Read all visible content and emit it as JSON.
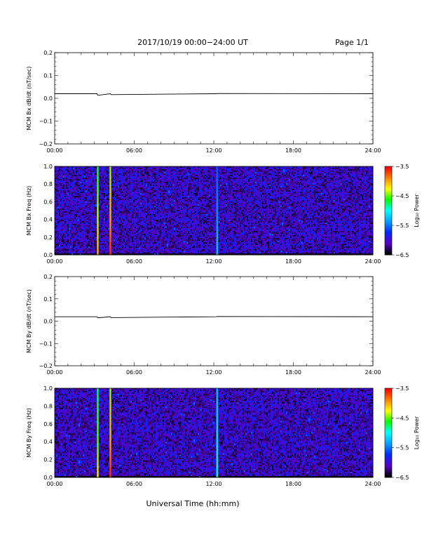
{
  "header": {
    "date_range": "2017/10/19  00:00−24:00 UT",
    "page": "Page 1/1"
  },
  "xaxis": {
    "label": "Universal Time (hh:mm)",
    "ticks": [
      "00:00",
      "06:00",
      "12:00",
      "18:00",
      "24:00"
    ]
  },
  "colors": {
    "colormap": [
      "#000000",
      "#5a00c8",
      "#0028ff",
      "#00a0ff",
      "#00ffff",
      "#00ff00",
      "#ffff00",
      "#ff8000",
      "#ff0000"
    ],
    "background_noise": "#1e46dc"
  },
  "chart_data": [
    {
      "type": "line",
      "ylabel": "MCM Bx dB/dt (nT/sec)",
      "ylim": [
        -0.2,
        0.2
      ],
      "yticks": [
        "0.2",
        "0.1",
        "0.0",
        "−0.1",
        "−0.2"
      ],
      "xlim_hours": [
        0,
        24
      ],
      "baseline": 0.02,
      "x": [
        0,
        3.2,
        3.25,
        4.2,
        4.25,
        12.2,
        12.25,
        24
      ],
      "y": [
        0.02,
        0.02,
        0.013,
        0.02,
        0.016,
        0.02,
        0.021,
        0.02
      ]
    },
    {
      "type": "heatmap",
      "ylabel": "MCM Bx Freq (Hz)",
      "ylim": [
        0,
        1
      ],
      "yticks": [
        "1.0",
        "0.8",
        "0.6",
        "0.4",
        "0.2",
        "0.0"
      ],
      "colorbar_label": "Log₁₀ Power",
      "colorbar_ticks": [
        "−3.5",
        "−4.5",
        "−5.5",
        "−6.5"
      ],
      "clim": [
        -6.5,
        -3.5
      ],
      "background_log_power": -6.1,
      "events": [
        {
          "time_hours": 3.25,
          "log_power_low": -4.0,
          "log_power_high": -4.7
        },
        {
          "time_hours": 4.2,
          "log_power_low": -3.6,
          "log_power_high": -4.4
        },
        {
          "time_hours": 12.25,
          "log_power_low": -5.2,
          "log_power_high": -5.6
        }
      ]
    },
    {
      "type": "line",
      "ylabel": "MCM By dB/dt (nT/sec)",
      "ylim": [
        -0.2,
        0.2
      ],
      "yticks": [
        "0.2",
        "0.1",
        "0.0",
        "−0.1",
        "−0.2"
      ],
      "xlim_hours": [
        0,
        24
      ],
      "baseline": 0.02,
      "x": [
        0,
        3.2,
        3.25,
        4.2,
        4.25,
        12.2,
        12.25,
        24
      ],
      "y": [
        0.02,
        0.02,
        0.015,
        0.02,
        0.016,
        0.02,
        0.021,
        0.02
      ]
    },
    {
      "type": "heatmap",
      "ylabel": "MCM By Freq (Hz)",
      "ylim": [
        0,
        1
      ],
      "yticks": [
        "1.0",
        "0.8",
        "0.6",
        "0.4",
        "0.2",
        "0.0"
      ],
      "colorbar_label": "Log₁₀ Power",
      "colorbar_ticks": [
        "−3.5",
        "−4.5",
        "−5.5",
        "−6.5"
      ],
      "clim": [
        -6.5,
        -3.5
      ],
      "background_log_power": -6.1,
      "events": [
        {
          "time_hours": 3.25,
          "log_power_low": -4.2,
          "log_power_high": -4.8
        },
        {
          "time_hours": 4.2,
          "log_power_low": -3.6,
          "log_power_high": -4.4
        },
        {
          "time_hours": 12.25,
          "log_power_low": -4.9,
          "log_power_high": -5.3
        }
      ]
    }
  ]
}
